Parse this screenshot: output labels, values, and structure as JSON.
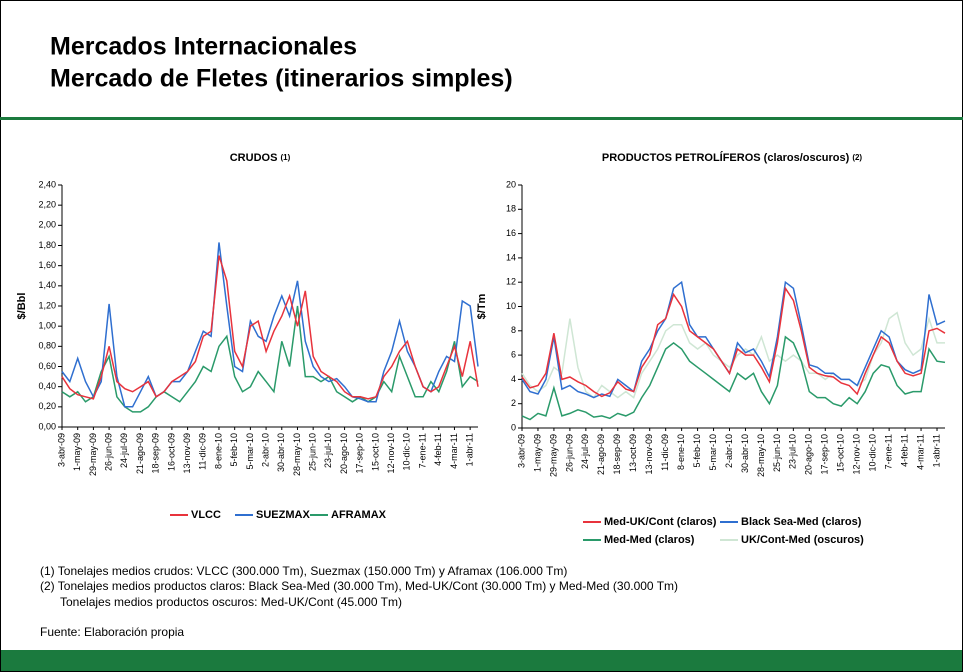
{
  "header": {
    "title_lines": [
      "Mercados Internacionales",
      "Mercado de Fletes (itinerarios simples)"
    ]
  },
  "notes": [
    "(1) Tonelajes medios crudos:  VLCC (300.000 Tm), Suezmax (150.000 Tm) y Aframax (106.000 Tm)",
    "(2) Tonelajes medios productos claros: Black Sea-Med (30.000 Tm), Med-UK/Cont (30.000 Tm) y Med-Med (30.000 Tm)",
    "Tonelajes medios productos oscuros: Med-UK/Cont (45.000 Tm)"
  ],
  "source": "Fuente: Elaboración propia",
  "chart_data": [
    {
      "type": "line",
      "title": "CRUDOS",
      "title_ref": "(1)",
      "ylabel": "$/Bbl",
      "categories": [
        "3-abr-09",
        null,
        "1-may-09",
        null,
        "29-may-09",
        null,
        "26-jun-09",
        null,
        "24-jul-09",
        null,
        "21-ago-09",
        null,
        "18-sep-09",
        null,
        "16-oct-09",
        null,
        "13-nov-09",
        null,
        "11-dic-09",
        null,
        "8-ene-10",
        null,
        "5-feb-10",
        null,
        "5-mar-10",
        null,
        "2-abr-10",
        null,
        "30-abr-10",
        null,
        "28-may-10",
        null,
        "25-jun-10",
        null,
        "23-jul-10",
        null,
        "20-ago-10",
        null,
        "17-sep-10",
        null,
        "15-oct-10",
        null,
        "12-nov-10",
        null,
        "10-dic-10",
        null,
        "7-ene-11",
        null,
        "4-feb-11",
        null,
        "4-mar-11",
        null,
        "1-abr-11",
        null
      ],
      "ylim": [
        0,
        2.4
      ],
      "yticks": [
        {
          "value": 0,
          "label": "0,00"
        },
        {
          "value": 0.2,
          "label": "0,20"
        },
        {
          "value": 0.4,
          "label": "0,40"
        },
        {
          "value": 0.6,
          "label": "0,60"
        },
        {
          "value": 0.8,
          "label": "0,80"
        },
        {
          "value": 1.0,
          "label": "1,00"
        },
        {
          "value": 1.2,
          "label": "1,20"
        },
        {
          "value": 1.4,
          "label": "1,40"
        },
        {
          "value": 1.6,
          "label": "1,60"
        },
        {
          "value": 1.8,
          "label": "1,80"
        },
        {
          "value": 2.0,
          "label": "2,00"
        },
        {
          "value": 2.2,
          "label": "2,20"
        },
        {
          "value": 2.4,
          "label": "2,40"
        }
      ],
      "series": [
        {
          "name": "VLCC",
          "color": "#e8333c",
          "values": [
            0.5,
            0.38,
            0.32,
            0.3,
            0.28,
            0.5,
            0.8,
            0.45,
            0.38,
            0.35,
            0.4,
            0.45,
            0.3,
            0.35,
            0.45,
            0.5,
            0.55,
            0.65,
            0.9,
            0.95,
            1.7,
            1.45,
            0.75,
            0.6,
            1.0,
            1.05,
            0.75,
            0.95,
            1.1,
            1.3,
            1.0,
            1.35,
            0.7,
            0.55,
            0.5,
            0.45,
            0.35,
            0.3,
            0.3,
            0.28,
            0.3,
            0.5,
            0.6,
            0.75,
            0.85,
            0.6,
            0.4,
            0.35,
            0.4,
            0.6,
            0.8,
            0.5,
            0.85,
            0.4
          ]
        },
        {
          "name": "SUEZMAX",
          "color": "#2f6fd0",
          "values": [
            0.55,
            0.45,
            0.68,
            0.45,
            0.3,
            0.45,
            1.22,
            0.5,
            0.2,
            0.2,
            0.35,
            0.5,
            0.3,
            0.35,
            0.45,
            0.45,
            0.55,
            0.75,
            0.95,
            0.9,
            1.83,
            1.2,
            0.6,
            0.55,
            1.05,
            0.9,
            0.85,
            1.1,
            1.3,
            1.1,
            1.45,
            0.85,
            0.6,
            0.5,
            0.45,
            0.48,
            0.4,
            0.3,
            0.28,
            0.25,
            0.25,
            0.55,
            0.75,
            1.05,
            0.75,
            0.6,
            0.4,
            0.35,
            0.55,
            0.7,
            0.65,
            1.25,
            1.2,
            0.6
          ]
        },
        {
          "name": "AFRAMAX",
          "color": "#2a9a6a",
          "values": [
            0.35,
            0.3,
            0.35,
            0.25,
            0.3,
            0.55,
            0.7,
            0.3,
            0.2,
            0.15,
            0.15,
            0.2,
            0.3,
            0.35,
            0.3,
            0.25,
            0.35,
            0.45,
            0.6,
            0.55,
            0.8,
            0.9,
            0.5,
            0.35,
            0.4,
            0.55,
            0.45,
            0.35,
            0.85,
            0.6,
            1.2,
            0.5,
            0.5,
            0.45,
            0.5,
            0.35,
            0.3,
            0.25,
            0.3,
            0.25,
            0.3,
            0.45,
            0.35,
            0.7,
            0.5,
            0.3,
            0.3,
            0.45,
            0.35,
            0.55,
            0.85,
            0.4,
            0.5,
            0.45
          ]
        }
      ]
    },
    {
      "type": "line",
      "title": "PRODUCTOS PETROLÍFEROS (claros/oscuros)",
      "title_ref": "(2)",
      "ylabel": "$/Tm",
      "categories": [
        "3-abr-09",
        null,
        "1-may-09",
        null,
        "29-may-09",
        null,
        "26-jun-09",
        null,
        "24-jul-09",
        null,
        "21-ago-09",
        null,
        "18-sep-09",
        null,
        "13-oct-09",
        null,
        "13-nov-09",
        null,
        "11-dic-09",
        null,
        "8-ene-10",
        null,
        "5-feb-10",
        null,
        "5-mar-10",
        null,
        "2-abr-10",
        null,
        "30-abr-10",
        null,
        "28-may-10",
        null,
        "25-jun-10",
        null,
        "23-jul-10",
        null,
        "20-ago-10",
        null,
        "17-sep-10",
        null,
        "15-oct-10",
        null,
        "12-nov-10",
        null,
        "10-dic-10",
        null,
        "7-ene-11",
        null,
        "4-feb-11",
        null,
        "4-mar-11",
        null,
        "1-abr-11",
        null
      ],
      "ylim": [
        0,
        20
      ],
      "yticks": [
        0,
        2,
        4,
        6,
        8,
        10,
        12,
        14,
        16,
        18,
        20
      ],
      "series": [
        {
          "name": "Med-UK/Cont (claros)",
          "color": "#e8333c",
          "values": [
            4.2,
            3.3,
            3.5,
            4.5,
            7.8,
            4.0,
            4.2,
            3.8,
            3.5,
            3.0,
            2.6,
            2.9,
            3.8,
            3.2,
            3.0,
            5.0,
            6.0,
            8.5,
            9.0,
            11.0,
            10.0,
            8.0,
            7.5,
            7.0,
            6.5,
            5.5,
            4.5,
            6.5,
            6.0,
            6.0,
            5.0,
            3.8,
            7.0,
            11.5,
            10.5,
            8.0,
            5.0,
            4.5,
            4.3,
            4.2,
            3.7,
            3.5,
            2.8,
            4.5,
            6.0,
            7.5,
            7.0,
            5.5,
            4.5,
            4.3,
            4.5,
            8.0,
            8.2,
            7.8
          ]
        },
        {
          "name": "Black Sea-Med (claros)",
          "color": "#2f6fd0",
          "values": [
            4.0,
            3.0,
            2.8,
            4.0,
            7.5,
            3.2,
            3.5,
            3.0,
            2.8,
            2.5,
            2.8,
            2.6,
            4.0,
            3.5,
            3.0,
            5.5,
            6.5,
            8.0,
            9.0,
            11.5,
            12.0,
            8.5,
            7.5,
            7.5,
            6.5,
            5.5,
            4.5,
            7.0,
            6.2,
            6.5,
            5.5,
            4.2,
            7.5,
            12.0,
            11.5,
            8.5,
            5.2,
            5.0,
            4.5,
            4.5,
            4.0,
            4.0,
            3.5,
            5.0,
            6.5,
            8.0,
            7.5,
            5.5,
            4.8,
            4.5,
            4.8,
            11.0,
            8.5,
            8.8
          ]
        },
        {
          "name": "Med-Med (claros)",
          "color": "#2a9a6a",
          "values": [
            1.0,
            0.7,
            1.2,
            1.0,
            3.3,
            1.0,
            1.2,
            1.5,
            1.3,
            0.9,
            1.0,
            0.8,
            1.2,
            1.0,
            1.3,
            2.5,
            3.5,
            5.0,
            6.5,
            7.0,
            6.5,
            5.5,
            5.0,
            4.5,
            4.0,
            3.5,
            3.0,
            4.5,
            4.0,
            4.5,
            3.0,
            2.0,
            3.5,
            7.5,
            7.0,
            5.5,
            3.0,
            2.5,
            2.5,
            2.0,
            1.8,
            2.5,
            2.0,
            3.0,
            4.5,
            5.2,
            5.0,
            3.5,
            2.8,
            3.0,
            3.0,
            6.5,
            5.5,
            5.4
          ]
        },
        {
          "name": "UK/Cont-Med (oscuros)",
          "color": "#cfe6d4",
          "values": [
            4.5,
            3.5,
            3.0,
            3.5,
            5.0,
            4.5,
            9.0,
            5.0,
            3.0,
            2.5,
            3.5,
            3.0,
            2.5,
            3.0,
            2.5,
            4.5,
            5.5,
            6.5,
            8.0,
            8.5,
            8.5,
            7.0,
            6.5,
            7.0,
            6.0,
            5.5,
            5.0,
            6.0,
            6.5,
            6.0,
            7.5,
            5.5,
            6.0,
            5.5,
            6.0,
            5.5,
            4.5,
            4.5,
            4.0,
            4.5,
            4.0,
            4.0,
            3.5,
            4.0,
            6.0,
            7.0,
            9.0,
            9.5,
            7.0,
            6.0,
            6.5,
            9.0,
            7.0,
            7.0
          ]
        }
      ]
    }
  ]
}
